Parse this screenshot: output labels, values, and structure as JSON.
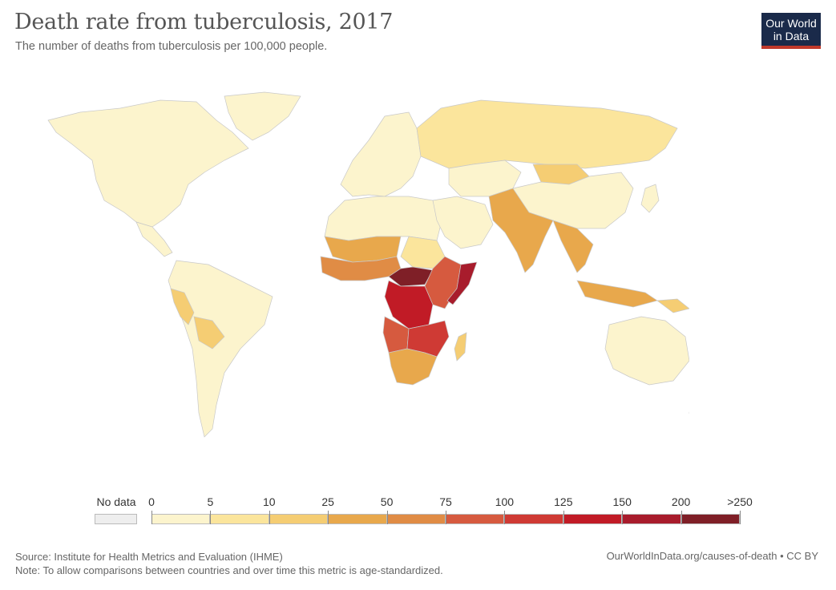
{
  "title": "Death rate from tuberculosis, 2017",
  "subtitle": "The number of deaths from tuberculosis per 100,000 people.",
  "logo": {
    "line1": "Our World",
    "line2": "in Data"
  },
  "legend": {
    "no_data_label": "No data",
    "no_data_color": "#eeeeee",
    "bins": [
      {
        "from": "0",
        "to": "5",
        "color": "#fcf4cd"
      },
      {
        "from": "5",
        "to": "10",
        "color": "#fbe59c"
      },
      {
        "from": "10",
        "to": "25",
        "color": "#f5cd73"
      },
      {
        "from": "25",
        "to": "50",
        "color": "#e8a84c"
      },
      {
        "from": "50",
        "to": "75",
        "color": "#e08c45"
      },
      {
        "from": "75",
        "to": "100",
        "color": "#d65a3f"
      },
      {
        "from": "100",
        "to": "125",
        "color": "#cf3a34"
      },
      {
        "from": "125",
        "to": "150",
        "color": "#c11b26"
      },
      {
        "from": "150",
        "to": "200",
        "color": "#a81c2c"
      },
      {
        "from": "200",
        "to": ">250",
        "color": "#7f1f27"
      }
    ],
    "tick_labels": [
      "0",
      "5",
      "10",
      "25",
      "50",
      "75",
      "100",
      "125",
      "150",
      "200",
      ">250"
    ]
  },
  "regions": [
    {
      "id": "north-america",
      "color": "#fcf4cd"
    },
    {
      "id": "greenland",
      "color": "#fcf4cd"
    },
    {
      "id": "central-america",
      "color": "#fcf4cd"
    },
    {
      "id": "south-america",
      "color": "#fcf4cd"
    },
    {
      "id": "peru",
      "color": "#f5cd73"
    },
    {
      "id": "bolivia",
      "color": "#f5cd73"
    },
    {
      "id": "europe",
      "color": "#fcf4cd"
    },
    {
      "id": "russia",
      "color": "#fbe59c"
    },
    {
      "id": "north-africa",
      "color": "#fcf4cd"
    },
    {
      "id": "west-africa",
      "color": "#e08c45"
    },
    {
      "id": "sahel",
      "color": "#e8a84c"
    },
    {
      "id": "sudan",
      "color": "#fbe59c"
    },
    {
      "id": "central-africa",
      "color": "#c11b26"
    },
    {
      "id": "car",
      "color": "#7f1f27"
    },
    {
      "id": "east-africa",
      "color": "#d65a3f"
    },
    {
      "id": "somalia",
      "color": "#a81c2c"
    },
    {
      "id": "angola",
      "color": "#d65a3f"
    },
    {
      "id": "mozambique",
      "color": "#cf3a34"
    },
    {
      "id": "southern-africa",
      "color": "#e8a84c"
    },
    {
      "id": "madagascar",
      "color": "#f5cd73"
    },
    {
      "id": "middle-east",
      "color": "#fcf4cd"
    },
    {
      "id": "central-asia",
      "color": "#fcf4cd"
    },
    {
      "id": "mongolia",
      "color": "#f5cd73"
    },
    {
      "id": "china",
      "color": "#fcf4cd"
    },
    {
      "id": "south-asia",
      "color": "#e8a84c"
    },
    {
      "id": "southeast-asia",
      "color": "#e8a84c"
    },
    {
      "id": "indonesia",
      "color": "#e8a84c"
    },
    {
      "id": "png",
      "color": "#f5cd73"
    },
    {
      "id": "japan",
      "color": "#fcf4cd"
    },
    {
      "id": "australia",
      "color": "#fcf4cd"
    },
    {
      "id": "new-zealand",
      "color": "#fcf4cd"
    }
  ],
  "footer": {
    "source": "Source: Institute for Health Metrics and Evaluation (IHME)",
    "note": "Note: To allow comparisons between countries and over time this metric is age-standardized.",
    "url": "OurWorldInData.org/causes-of-death • CC BY"
  }
}
